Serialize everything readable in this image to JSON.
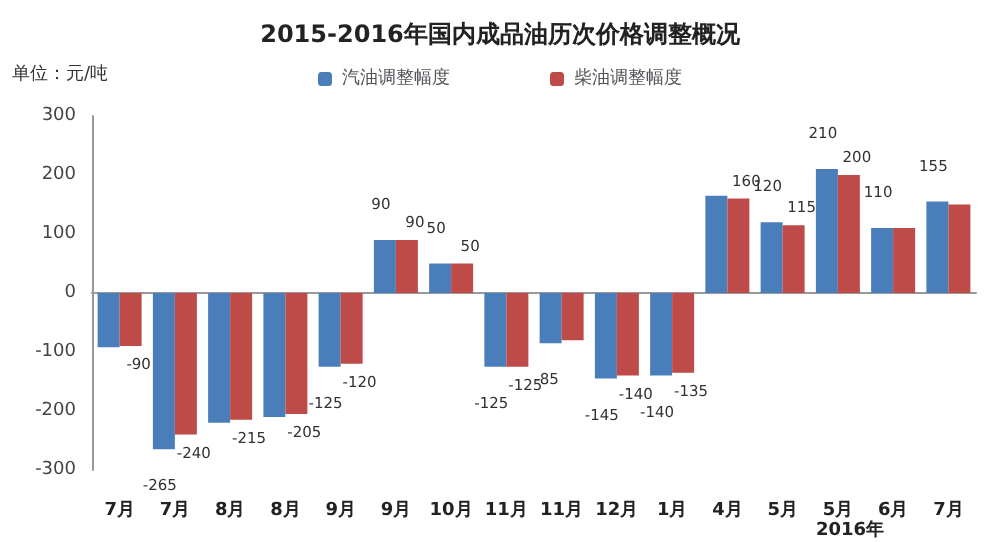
{
  "chart_data": {
    "type": "bar",
    "title": "2015-2016年国内成品油历次价格调整概况",
    "ylabel": "单位：元/吨",
    "categories": [
      "7月",
      "7月",
      "8月",
      "8月",
      "9月",
      "9月",
      "10月",
      "11月",
      "11月",
      "12月",
      "1月",
      "4月",
      "5月",
      "5月",
      "6月",
      "7月"
    ],
    "series": [
      {
        "name": "汽油调整幅度",
        "color": "#4a7ebb",
        "values": [
          -92,
          -265,
          -220,
          -210,
          -125,
          90,
          50,
          -125,
          -85,
          -145,
          -140,
          165,
          120,
          210,
          110,
          155
        ],
        "value_labels": [
          null,
          "-265",
          null,
          null,
          "-125",
          "90",
          "50",
          "-125",
          "-85",
          "-145",
          "-140",
          null,
          "120",
          "210",
          "110",
          "155"
        ]
      },
      {
        "name": "柴油调整幅度",
        "color": "#be4b48",
        "values": [
          -90,
          -240,
          -215,
          -205,
          -120,
          90,
          50,
          -125,
          -80,
          -140,
          -135,
          160,
          115,
          200,
          110,
          150
        ],
        "value_labels": [
          "-90",
          "-240",
          "-215",
          "-205",
          "-120",
          "90",
          "50",
          "-125",
          null,
          "-140",
          "-135",
          "160",
          "115",
          "200",
          null,
          null
        ]
      }
    ],
    "annotations": [
      "2016年"
    ],
    "ylim": [
      -300,
      300
    ],
    "yticks": [
      -300,
      -200,
      -100,
      0,
      100,
      200,
      300
    ],
    "legend": "top"
  }
}
